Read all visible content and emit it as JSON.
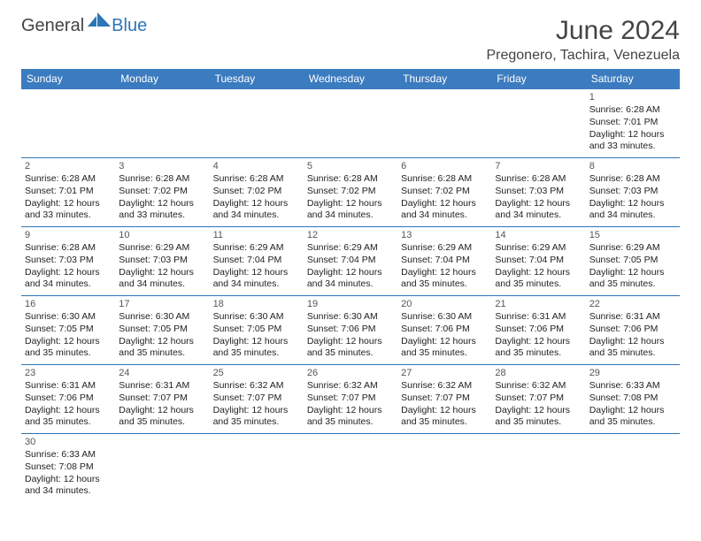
{
  "logo": {
    "general": "General",
    "blue": "Blue"
  },
  "title": "June 2024",
  "location": "Pregonero, Tachira, Venezuela",
  "colors": {
    "header_bg": "#3b7bbf",
    "header_text": "#ffffff",
    "accent_blue": "#2e75b6",
    "text": "#222222",
    "title_text": "#444444",
    "background": "#ffffff"
  },
  "weekdays": [
    "Sunday",
    "Monday",
    "Tuesday",
    "Wednesday",
    "Thursday",
    "Friday",
    "Saturday"
  ],
  "cells": [
    null,
    null,
    null,
    null,
    null,
    null,
    {
      "n": "1",
      "sr": "Sunrise: 6:28 AM",
      "ss": "Sunset: 7:01 PM",
      "d1": "Daylight: 12 hours",
      "d2": "and 33 minutes."
    },
    {
      "n": "2",
      "sr": "Sunrise: 6:28 AM",
      "ss": "Sunset: 7:01 PM",
      "d1": "Daylight: 12 hours",
      "d2": "and 33 minutes."
    },
    {
      "n": "3",
      "sr": "Sunrise: 6:28 AM",
      "ss": "Sunset: 7:02 PM",
      "d1": "Daylight: 12 hours",
      "d2": "and 33 minutes."
    },
    {
      "n": "4",
      "sr": "Sunrise: 6:28 AM",
      "ss": "Sunset: 7:02 PM",
      "d1": "Daylight: 12 hours",
      "d2": "and 34 minutes."
    },
    {
      "n": "5",
      "sr": "Sunrise: 6:28 AM",
      "ss": "Sunset: 7:02 PM",
      "d1": "Daylight: 12 hours",
      "d2": "and 34 minutes."
    },
    {
      "n": "6",
      "sr": "Sunrise: 6:28 AM",
      "ss": "Sunset: 7:02 PM",
      "d1": "Daylight: 12 hours",
      "d2": "and 34 minutes."
    },
    {
      "n": "7",
      "sr": "Sunrise: 6:28 AM",
      "ss": "Sunset: 7:03 PM",
      "d1": "Daylight: 12 hours",
      "d2": "and 34 minutes."
    },
    {
      "n": "8",
      "sr": "Sunrise: 6:28 AM",
      "ss": "Sunset: 7:03 PM",
      "d1": "Daylight: 12 hours",
      "d2": "and 34 minutes."
    },
    {
      "n": "9",
      "sr": "Sunrise: 6:28 AM",
      "ss": "Sunset: 7:03 PM",
      "d1": "Daylight: 12 hours",
      "d2": "and 34 minutes."
    },
    {
      "n": "10",
      "sr": "Sunrise: 6:29 AM",
      "ss": "Sunset: 7:03 PM",
      "d1": "Daylight: 12 hours",
      "d2": "and 34 minutes."
    },
    {
      "n": "11",
      "sr": "Sunrise: 6:29 AM",
      "ss": "Sunset: 7:04 PM",
      "d1": "Daylight: 12 hours",
      "d2": "and 34 minutes."
    },
    {
      "n": "12",
      "sr": "Sunrise: 6:29 AM",
      "ss": "Sunset: 7:04 PM",
      "d1": "Daylight: 12 hours",
      "d2": "and 34 minutes."
    },
    {
      "n": "13",
      "sr": "Sunrise: 6:29 AM",
      "ss": "Sunset: 7:04 PM",
      "d1": "Daylight: 12 hours",
      "d2": "and 35 minutes."
    },
    {
      "n": "14",
      "sr": "Sunrise: 6:29 AM",
      "ss": "Sunset: 7:04 PM",
      "d1": "Daylight: 12 hours",
      "d2": "and 35 minutes."
    },
    {
      "n": "15",
      "sr": "Sunrise: 6:29 AM",
      "ss": "Sunset: 7:05 PM",
      "d1": "Daylight: 12 hours",
      "d2": "and 35 minutes."
    },
    {
      "n": "16",
      "sr": "Sunrise: 6:30 AM",
      "ss": "Sunset: 7:05 PM",
      "d1": "Daylight: 12 hours",
      "d2": "and 35 minutes."
    },
    {
      "n": "17",
      "sr": "Sunrise: 6:30 AM",
      "ss": "Sunset: 7:05 PM",
      "d1": "Daylight: 12 hours",
      "d2": "and 35 minutes."
    },
    {
      "n": "18",
      "sr": "Sunrise: 6:30 AM",
      "ss": "Sunset: 7:05 PM",
      "d1": "Daylight: 12 hours",
      "d2": "and 35 minutes."
    },
    {
      "n": "19",
      "sr": "Sunrise: 6:30 AM",
      "ss": "Sunset: 7:06 PM",
      "d1": "Daylight: 12 hours",
      "d2": "and 35 minutes."
    },
    {
      "n": "20",
      "sr": "Sunrise: 6:30 AM",
      "ss": "Sunset: 7:06 PM",
      "d1": "Daylight: 12 hours",
      "d2": "and 35 minutes."
    },
    {
      "n": "21",
      "sr": "Sunrise: 6:31 AM",
      "ss": "Sunset: 7:06 PM",
      "d1": "Daylight: 12 hours",
      "d2": "and 35 minutes."
    },
    {
      "n": "22",
      "sr": "Sunrise: 6:31 AM",
      "ss": "Sunset: 7:06 PM",
      "d1": "Daylight: 12 hours",
      "d2": "and 35 minutes."
    },
    {
      "n": "23",
      "sr": "Sunrise: 6:31 AM",
      "ss": "Sunset: 7:06 PM",
      "d1": "Daylight: 12 hours",
      "d2": "and 35 minutes."
    },
    {
      "n": "24",
      "sr": "Sunrise: 6:31 AM",
      "ss": "Sunset: 7:07 PM",
      "d1": "Daylight: 12 hours",
      "d2": "and 35 minutes."
    },
    {
      "n": "25",
      "sr": "Sunrise: 6:32 AM",
      "ss": "Sunset: 7:07 PM",
      "d1": "Daylight: 12 hours",
      "d2": "and 35 minutes."
    },
    {
      "n": "26",
      "sr": "Sunrise: 6:32 AM",
      "ss": "Sunset: 7:07 PM",
      "d1": "Daylight: 12 hours",
      "d2": "and 35 minutes."
    },
    {
      "n": "27",
      "sr": "Sunrise: 6:32 AM",
      "ss": "Sunset: 7:07 PM",
      "d1": "Daylight: 12 hours",
      "d2": "and 35 minutes."
    },
    {
      "n": "28",
      "sr": "Sunrise: 6:32 AM",
      "ss": "Sunset: 7:07 PM",
      "d1": "Daylight: 12 hours",
      "d2": "and 35 minutes."
    },
    {
      "n": "29",
      "sr": "Sunrise: 6:33 AM",
      "ss": "Sunset: 7:08 PM",
      "d1": "Daylight: 12 hours",
      "d2": "and 35 minutes."
    },
    {
      "n": "30",
      "sr": "Sunrise: 6:33 AM",
      "ss": "Sunset: 7:08 PM",
      "d1": "Daylight: 12 hours",
      "d2": "and 34 minutes."
    },
    null,
    null,
    null,
    null,
    null,
    null
  ]
}
